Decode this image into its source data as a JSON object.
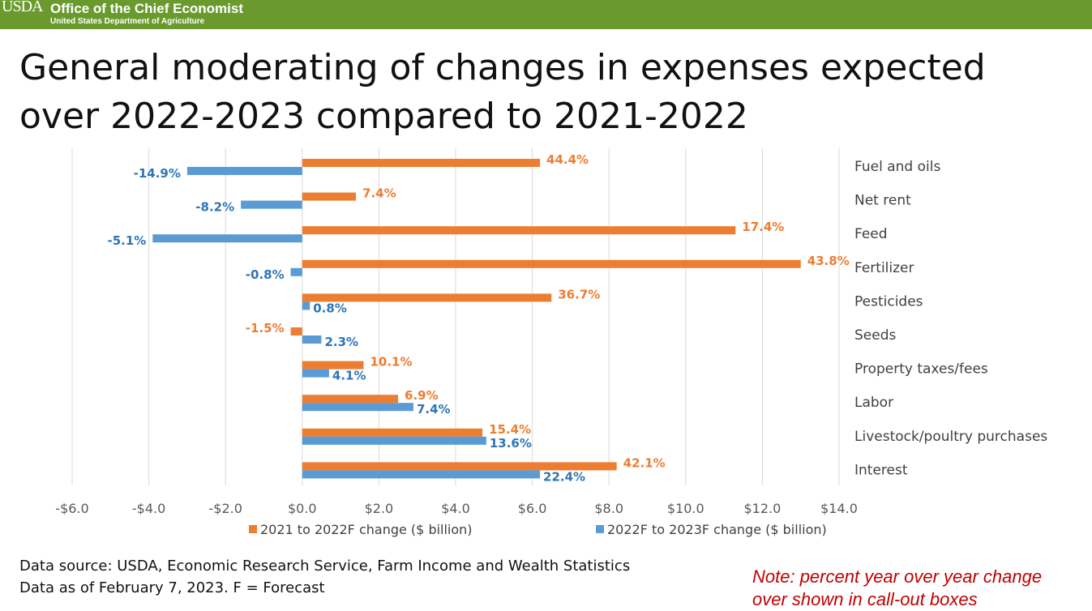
{
  "header": {
    "logo_text": "USDA",
    "office": "Office of the Chief Economist",
    "department": "United States Department of Agriculture"
  },
  "slide_title": "General moderating of changes in expenses expected over 2022-2023 compared to 2021-2022",
  "chart_data": {
    "type": "bar",
    "orientation": "horizontal",
    "categories": [
      "Fuel and oils",
      "Net rent",
      "Feed",
      "Fertilizer",
      "Pesticides",
      "Seeds",
      "Property taxes/fees",
      "Labor",
      "Livestock/poultry purchases",
      "Interest"
    ],
    "series": [
      {
        "name": "2021 to 2022F change ($ billion)",
        "color": "#ed7d31",
        "values": [
          6.2,
          1.4,
          11.3,
          13.0,
          6.5,
          -0.3,
          1.6,
          2.5,
          4.7,
          8.2
        ],
        "labels": [
          "44.4%",
          "7.4%",
          "17.4%",
          "43.8%",
          "36.7%",
          "-1.5%",
          "10.1%",
          "6.9%",
          "15.4%",
          "42.1%"
        ]
      },
      {
        "name": "2022F to 2023F change ($ billion)",
        "color": "#5b9bd5",
        "values": [
          -3.0,
          -1.6,
          -3.9,
          -0.3,
          0.2,
          0.5,
          0.7,
          2.9,
          4.8,
          6.2
        ],
        "labels": [
          "-14.9%",
          "-8.2%",
          "-5.1%",
          "-0.8%",
          "0.8%",
          "2.3%",
          "4.1%",
          "7.4%",
          "13.6%",
          "22.4%"
        ]
      }
    ],
    "x_ticks": [
      "-$6.0",
      "-$4.0",
      "-$2.0",
      "$0.0",
      "$2.0",
      "$4.0",
      "$6.0",
      "$8.0",
      "$10.0",
      "$12.0",
      "$14.0"
    ],
    "xlim": [
      -6,
      14
    ],
    "grid": true,
    "legend_position": "bottom",
    "label_color_orange": "#ed7d31",
    "label_color_blue": "#2e75b6"
  },
  "footer": {
    "source": "Data source: USDA, Economic Research Service, Farm Income and Wealth Statistics",
    "date": "Data as of February 7, 2023.   F = Forecast",
    "note_line1": "Note: percent year over year change",
    "note_line2": "over shown in call-out boxes"
  }
}
